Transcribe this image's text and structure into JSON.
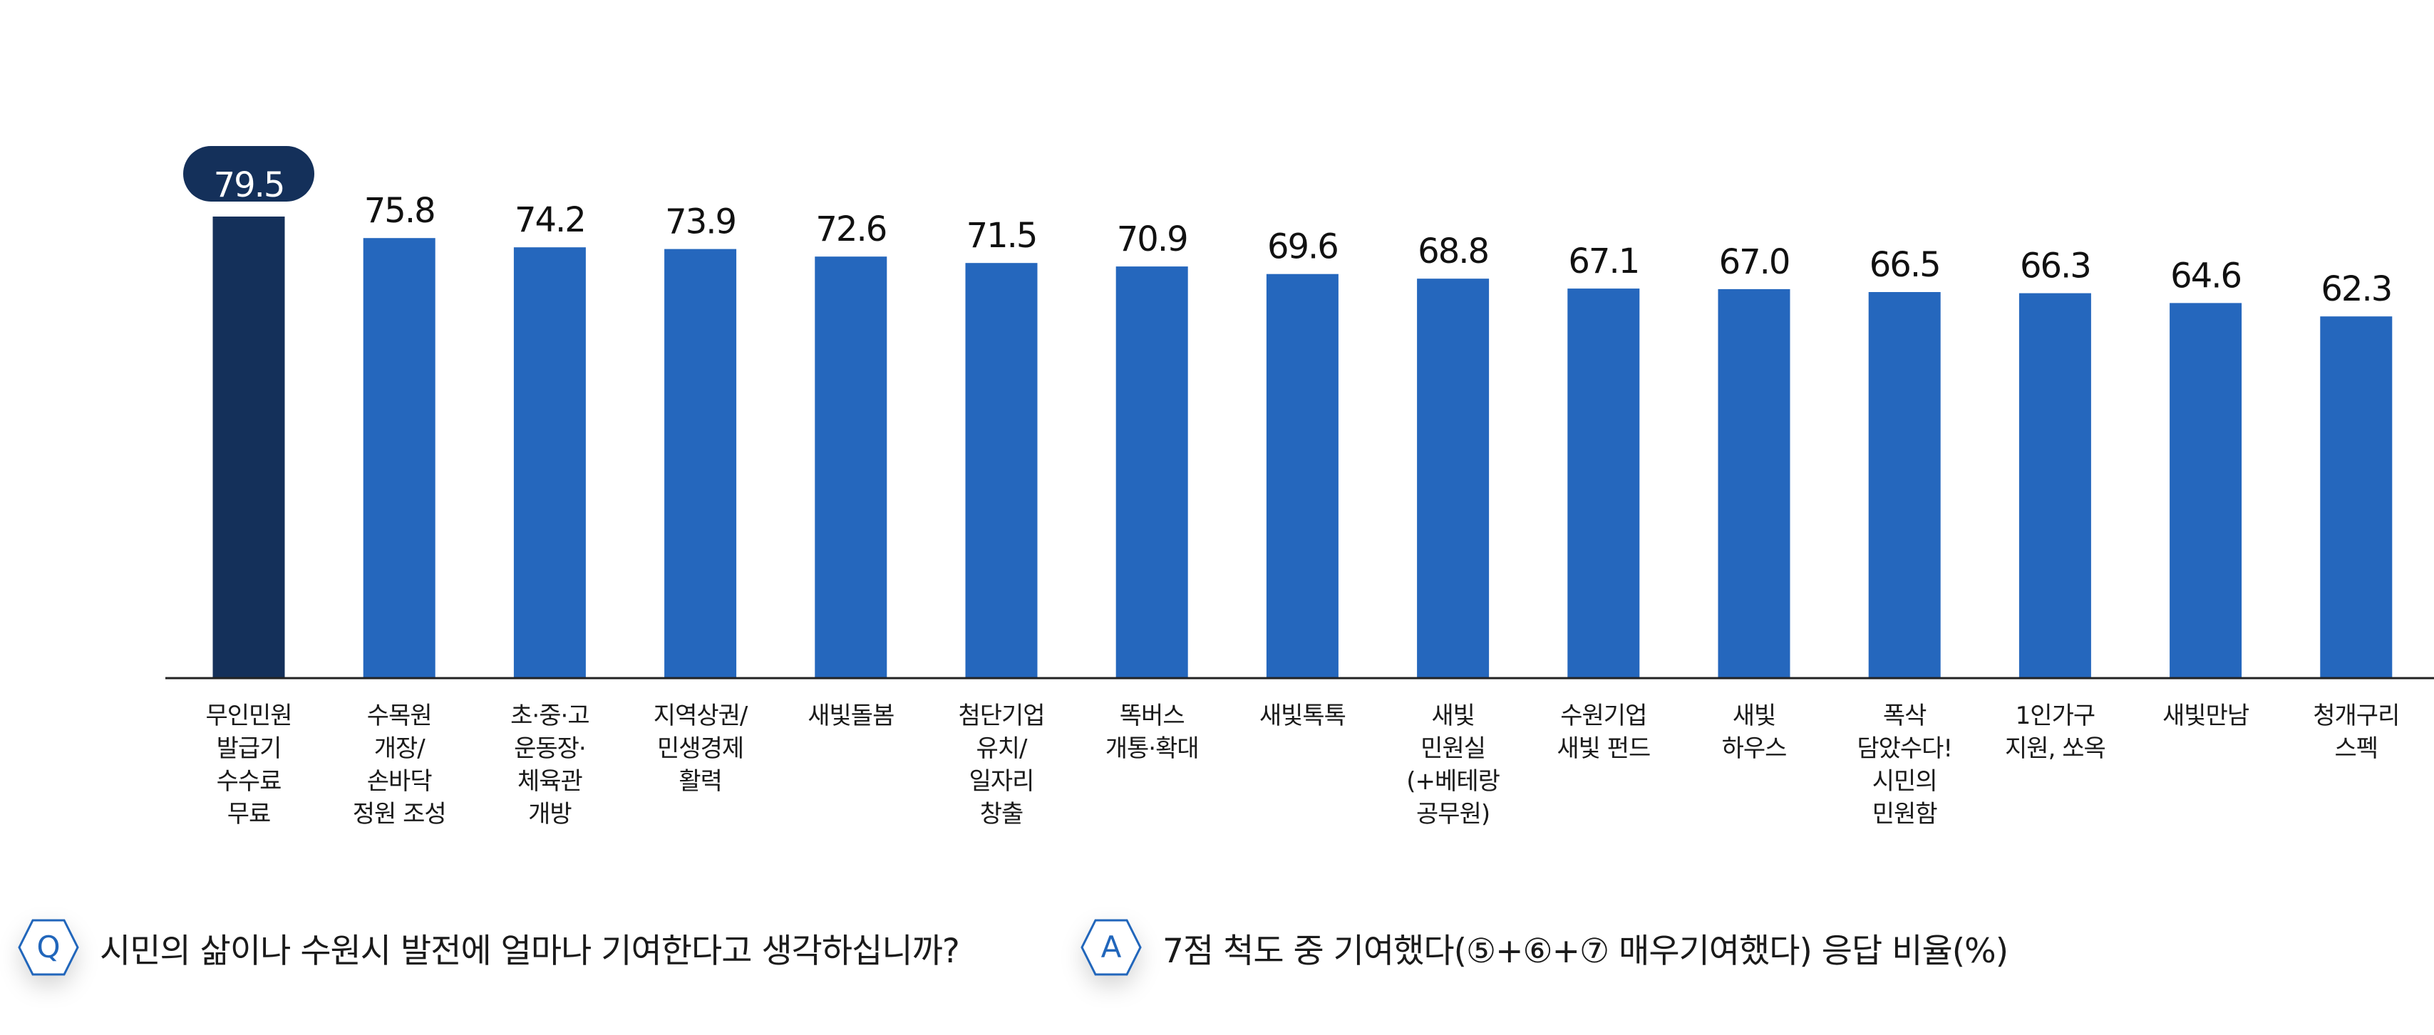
{
  "colors": {
    "highlight": "#14305a",
    "bar": "#2567bd",
    "axis": "#222222",
    "hex_border": "#2166bb"
  },
  "chart_data": {
    "type": "bar",
    "title": "",
    "xlabel": "",
    "ylabel": "",
    "ylim": [
      0,
      79.5
    ],
    "grid": false,
    "categories": [
      [
        "무인민원",
        "발급기",
        "수수료",
        "무료"
      ],
      [
        "수목원",
        "개장/",
        "손바닥",
        "정원 조성"
      ],
      [
        "초·중·고",
        "운동장·",
        "체육관",
        "개방"
      ],
      [
        "지역상권/",
        "민생경제",
        "활력"
      ],
      [
        "새빛돌봄"
      ],
      [
        "첨단기업",
        "유치/",
        "일자리",
        "창출"
      ],
      [
        "똑버스",
        "개통·확대"
      ],
      [
        "새빛톡톡"
      ],
      [
        "새빛",
        "민원실",
        "(+베테랑",
        "공무원)"
      ],
      [
        "수원기업",
        "새빛 펀드"
      ],
      [
        "새빛",
        "하우스"
      ],
      [
        "폭삭",
        "담았수다!",
        "시민의",
        "민원함"
      ],
      [
        "1인가구",
        "지원, 쏘옥"
      ],
      [
        "새빛만남"
      ],
      [
        "청개구리",
        "스펙"
      ]
    ],
    "values": [
      79.5,
      75.8,
      74.2,
      73.9,
      72.6,
      71.5,
      70.9,
      69.6,
      68.8,
      67.1,
      67.0,
      66.5,
      66.3,
      64.6,
      62.3
    ],
    "value_labels": [
      "79.5",
      "75.8",
      "74.2",
      "73.9",
      "72.6",
      "71.5",
      "70.9",
      "69.6",
      "68.8",
      "67.1",
      "67.0",
      "66.5",
      "66.3",
      "64.6",
      "62.3"
    ],
    "highlight_index": 0
  },
  "question": {
    "icon_letter": "Q",
    "text": "시민의 삶이나 수원시 발전에 얼마나 기여한다고 생각하십니까?"
  },
  "answer": {
    "icon_letter": "A",
    "text": "7점 척도 중 기여했다(⑤+⑥+⑦ 매우기여했다) 응답 비율(%)"
  }
}
